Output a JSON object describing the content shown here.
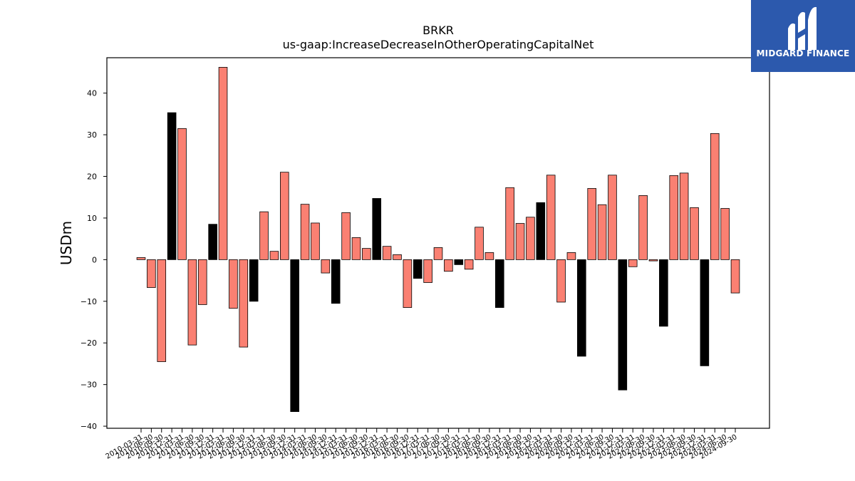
{
  "brand": {
    "name": "MIDGARD FINANCE",
    "bg_color": "#2c59ad"
  },
  "chart_data": {
    "type": "bar",
    "title": "BRKR",
    "subtitle": "us-gaap:IncreaseDecreaseInOtherOperatingCapitalNet",
    "ylabel": "USDm",
    "xlabel": "",
    "ylim": [
      -40.5,
      48.5
    ],
    "yticks": [
      -40,
      -30,
      -20,
      -10,
      0,
      10,
      20,
      30,
      40
    ],
    "grid": false,
    "legend": "none",
    "colors": {
      "quarterly": "#fa8072",
      "annual": "#000000"
    },
    "bars": [
      {
        "date": "2010-03-31",
        "value": 0.5,
        "kind": "quarterly"
      },
      {
        "date": "2010-06-30",
        "value": -6.7,
        "kind": "quarterly"
      },
      {
        "date": "2010-09-30",
        "value": -24.5,
        "kind": "quarterly"
      },
      {
        "date": "2010-12-31",
        "value": 35.3,
        "kind": "annual"
      },
      {
        "date": "2011-03-31",
        "value": 31.5,
        "kind": "quarterly"
      },
      {
        "date": "2011-06-30",
        "value": -20.5,
        "kind": "quarterly"
      },
      {
        "date": "2011-09-30",
        "value": -10.8,
        "kind": "quarterly"
      },
      {
        "date": "2011-12-31",
        "value": 8.5,
        "kind": "annual"
      },
      {
        "date": "2012-03-31",
        "value": 46.2,
        "kind": "quarterly"
      },
      {
        "date": "2012-06-30",
        "value": -11.7,
        "kind": "quarterly"
      },
      {
        "date": "2012-09-30",
        "value": -21.0,
        "kind": "quarterly"
      },
      {
        "date": "2012-12-31",
        "value": -10.0,
        "kind": "annual"
      },
      {
        "date": "2013-03-31",
        "value": 11.5,
        "kind": "quarterly"
      },
      {
        "date": "2013-06-30",
        "value": 2.0,
        "kind": "quarterly"
      },
      {
        "date": "2013-09-30",
        "value": 21.0,
        "kind": "quarterly"
      },
      {
        "date": "2013-12-31",
        "value": -36.5,
        "kind": "annual"
      },
      {
        "date": "2014-03-31",
        "value": 13.3,
        "kind": "quarterly"
      },
      {
        "date": "2014-06-30",
        "value": 8.8,
        "kind": "quarterly"
      },
      {
        "date": "2014-09-30",
        "value": -3.2,
        "kind": "quarterly"
      },
      {
        "date": "2014-12-31",
        "value": -10.5,
        "kind": "annual"
      },
      {
        "date": "2015-03-31",
        "value": 11.3,
        "kind": "quarterly"
      },
      {
        "date": "2015-06-30",
        "value": 5.3,
        "kind": "quarterly"
      },
      {
        "date": "2015-09-30",
        "value": 2.7,
        "kind": "quarterly"
      },
      {
        "date": "2015-12-31",
        "value": 14.7,
        "kind": "annual"
      },
      {
        "date": "2016-03-31",
        "value": 3.2,
        "kind": "quarterly"
      },
      {
        "date": "2016-06-30",
        "value": 1.2,
        "kind": "quarterly"
      },
      {
        "date": "2016-09-30",
        "value": -11.5,
        "kind": "quarterly"
      },
      {
        "date": "2016-12-31",
        "value": -4.5,
        "kind": "annual"
      },
      {
        "date": "2017-03-31",
        "value": -5.5,
        "kind": "quarterly"
      },
      {
        "date": "2017-06-30",
        "value": 2.9,
        "kind": "quarterly"
      },
      {
        "date": "2017-09-30",
        "value": -2.8,
        "kind": "quarterly"
      },
      {
        "date": "2017-12-31",
        "value": -1.2,
        "kind": "annual"
      },
      {
        "date": "2018-03-31",
        "value": -2.3,
        "kind": "quarterly"
      },
      {
        "date": "2018-06-30",
        "value": 7.8,
        "kind": "quarterly"
      },
      {
        "date": "2018-09-30",
        "value": 1.7,
        "kind": "quarterly"
      },
      {
        "date": "2018-12-31",
        "value": -11.5,
        "kind": "annual"
      },
      {
        "date": "2019-03-31",
        "value": 17.3,
        "kind": "quarterly"
      },
      {
        "date": "2019-06-30",
        "value": 8.7,
        "kind": "quarterly"
      },
      {
        "date": "2019-09-30",
        "value": 10.2,
        "kind": "quarterly"
      },
      {
        "date": "2019-12-31",
        "value": 13.7,
        "kind": "annual"
      },
      {
        "date": "2020-03-31",
        "value": 20.3,
        "kind": "quarterly"
      },
      {
        "date": "2020-06-30",
        "value": -10.2,
        "kind": "quarterly"
      },
      {
        "date": "2020-09-30",
        "value": 1.7,
        "kind": "quarterly"
      },
      {
        "date": "2020-12-31",
        "value": -23.2,
        "kind": "annual"
      },
      {
        "date": "2021-03-31",
        "value": 17.1,
        "kind": "quarterly"
      },
      {
        "date": "2021-06-30",
        "value": 13.2,
        "kind": "quarterly"
      },
      {
        "date": "2021-09-30",
        "value": 20.3,
        "kind": "quarterly"
      },
      {
        "date": "2021-12-31",
        "value": -31.3,
        "kind": "annual"
      },
      {
        "date": "2022-03-31",
        "value": -1.7,
        "kind": "quarterly"
      },
      {
        "date": "2022-06-30",
        "value": 15.4,
        "kind": "quarterly"
      },
      {
        "date": "2022-09-30",
        "value": -0.3,
        "kind": "quarterly"
      },
      {
        "date": "2022-12-31",
        "value": -16.0,
        "kind": "annual"
      },
      {
        "date": "2023-03-31",
        "value": 20.2,
        "kind": "quarterly"
      },
      {
        "date": "2023-06-30",
        "value": 20.8,
        "kind": "quarterly"
      },
      {
        "date": "2023-09-30",
        "value": 12.5,
        "kind": "quarterly"
      },
      {
        "date": "2023-12-31",
        "value": -25.5,
        "kind": "annual"
      },
      {
        "date": "2024-03-31",
        "value": 30.3,
        "kind": "quarterly"
      },
      {
        "date": "2024-06-30",
        "value": 12.3,
        "kind": "quarterly"
      },
      {
        "date": "2024-09-30",
        "value": -8.0,
        "kind": "quarterly"
      }
    ]
  }
}
